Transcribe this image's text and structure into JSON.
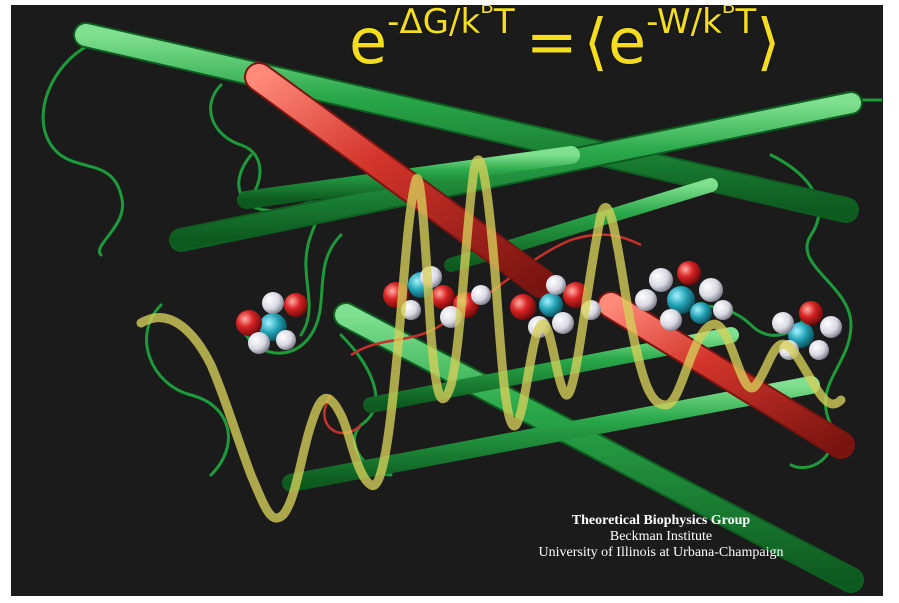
{
  "equation": {
    "lhs_base": "e",
    "lhs_exponent": "-ΔG/k",
    "lhs_sub": "B",
    "lhs_tail": "T",
    "equals": "=",
    "open_bracket": "⟨",
    "rhs_base": "e",
    "rhs_exponent": "-W/k",
    "rhs_sub": "B",
    "rhs_tail": "T",
    "close_bracket": "⟩",
    "color": "#f4dc1e"
  },
  "credits": {
    "group": "Theoretical Biophysics Group",
    "institute": "Beckman Institute",
    "university": "University of Illinois at Urbana-Champaign"
  },
  "colors": {
    "background": "#1b1b1b",
    "helix_green": "#1f9a3a",
    "helix_red": "#c8302a",
    "trajectory": "#c9c450",
    "atom_red": "#d22020",
    "atom_white": "#e8e8ee",
    "atom_cyan": "#2aa8b8"
  }
}
